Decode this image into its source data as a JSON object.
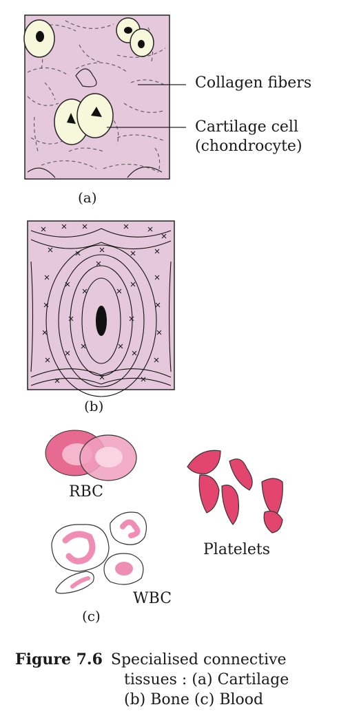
{
  "panel_a": {
    "sublabel": "(a)",
    "label_collagen": "Collagen fibers",
    "label_cartilage_cell_1": "Cartilage cell",
    "label_cartilage_cell_2": "(chondrocyte)"
  },
  "panel_b": {
    "sublabel": "(b)"
  },
  "panel_c": {
    "sublabel": "(c)",
    "label_rbc": "RBC",
    "label_platelets": "Platelets",
    "label_wbc": "WBC"
  },
  "caption": {
    "figure_number": "Figure 7.6",
    "line1": "Specialised connective",
    "line2": "tissues : (a) Cartilage",
    "line3": "(b) Bone  (c) Blood"
  },
  "colors": {
    "tissue_bg": "#e6c8dc",
    "cell_fill": "#f7f7dc",
    "rbc_pink": "#e76a93",
    "platelet_pink": "#e2466e",
    "wbc_pink": "#f08db4"
  }
}
